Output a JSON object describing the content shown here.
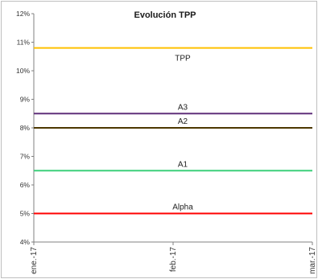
{
  "chart_data": {
    "type": "line",
    "title": "Evolución TPP",
    "xlabel": "",
    "ylabel": "",
    "categories": [
      "ene.-17",
      "feb.-17",
      "mar.-17"
    ],
    "ylim": [
      0.04,
      0.12
    ],
    "yticks": [
      "4%",
      "5%",
      "6%",
      "7%",
      "8%",
      "9%",
      "10%",
      "11%",
      "12%"
    ],
    "grid": false,
    "legend": "none",
    "series": [
      {
        "name": "TPP",
        "color": "#ffc000",
        "values": [
          0.108,
          0.108,
          0.108
        ]
      },
      {
        "name": "A3",
        "color": "#60307a",
        "values": [
          0.085,
          0.085,
          0.085
        ]
      },
      {
        "name": "A2",
        "color": "#4d3800",
        "values": [
          0.08,
          0.08,
          0.08
        ]
      },
      {
        "name": "A1",
        "color": "#3ccf7a",
        "values": [
          0.065,
          0.065,
          0.065
        ]
      },
      {
        "name": "Alpha",
        "color": "#ff0000",
        "values": [
          0.05,
          0.05,
          0.05
        ]
      }
    ]
  }
}
